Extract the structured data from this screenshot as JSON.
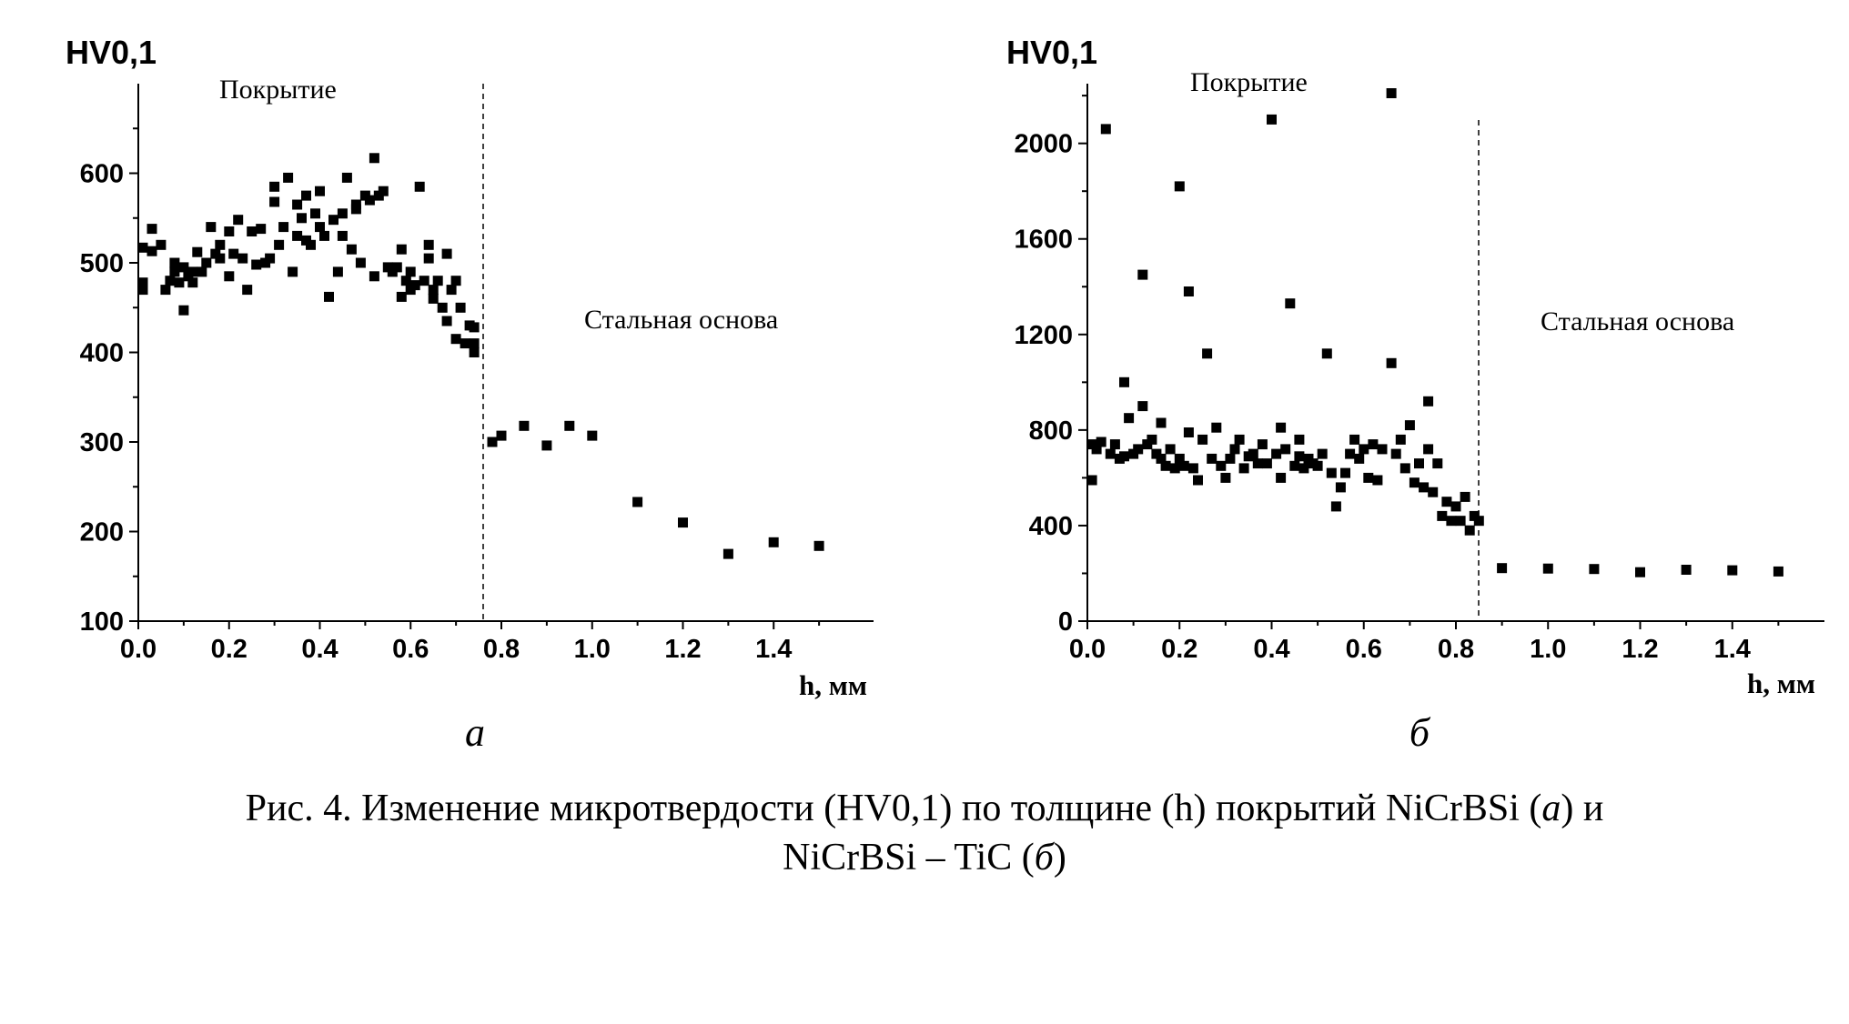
{
  "caption": {
    "line1_pre": "Рис. 4. Изменение микротвердости (HV0,1) по толщине (h) покрытий NiCrBSi (",
    "line1_a": "а",
    "line1_post": ") и",
    "line2_pre": "NiCrBSi – TiC (",
    "line2_b": "б",
    "line2_post": ")"
  },
  "chart_data": [
    {
      "type": "scatter",
      "panel_label": "а",
      "ylabel": "HV0,1",
      "xlabel": "h, мм",
      "xlim": [
        0.0,
        1.6
      ],
      "ylim": [
        100,
        700
      ],
      "xticks": [
        0.0,
        0.2,
        0.4,
        0.6,
        0.8,
        1.0,
        1.2,
        1.4
      ],
      "xtick_labels": [
        "0.0",
        "0.2",
        "0.4",
        "0.6",
        "0.8",
        "1.0",
        "1.2",
        "1.4"
      ],
      "yticks": [
        100,
        200,
        300,
        400,
        500,
        600
      ],
      "ytick_labels": [
        "100",
        "200",
        "300",
        "400",
        "500",
        "600"
      ],
      "boundary_x": 0.75,
      "region_left": "Покрытие",
      "region_right": "Стальная основа",
      "grid": false,
      "points": [
        [
          0.01,
          478
        ],
        [
          0.01,
          470
        ],
        [
          0.01,
          517
        ],
        [
          0.03,
          538
        ],
        [
          0.03,
          513
        ],
        [
          0.05,
          520
        ],
        [
          0.06,
          470
        ],
        [
          0.07,
          480
        ],
        [
          0.08,
          500
        ],
        [
          0.08,
          490
        ],
        [
          0.09,
          478
        ],
        [
          0.1,
          495
        ],
        [
          0.1,
          447
        ],
        [
          0.11,
          485
        ],
        [
          0.12,
          490
        ],
        [
          0.12,
          478
        ],
        [
          0.13,
          512
        ],
        [
          0.14,
          490
        ],
        [
          0.15,
          500
        ],
        [
          0.16,
          540
        ],
        [
          0.17,
          510
        ],
        [
          0.18,
          505
        ],
        [
          0.18,
          520
        ],
        [
          0.2,
          485
        ],
        [
          0.2,
          535
        ],
        [
          0.21,
          510
        ],
        [
          0.22,
          548
        ],
        [
          0.23,
          505
        ],
        [
          0.24,
          470
        ],
        [
          0.25,
          535
        ],
        [
          0.26,
          498
        ],
        [
          0.27,
          538
        ],
        [
          0.28,
          500
        ],
        [
          0.29,
          505
        ],
        [
          0.3,
          585
        ],
        [
          0.3,
          568
        ],
        [
          0.31,
          520
        ],
        [
          0.32,
          540
        ],
        [
          0.33,
          595
        ],
        [
          0.34,
          490
        ],
        [
          0.35,
          530
        ],
        [
          0.35,
          565
        ],
        [
          0.36,
          550
        ],
        [
          0.37,
          575
        ],
        [
          0.37,
          525
        ],
        [
          0.38,
          520
        ],
        [
          0.39,
          555
        ],
        [
          0.4,
          580
        ],
        [
          0.4,
          540
        ],
        [
          0.41,
          530
        ],
        [
          0.42,
          462
        ],
        [
          0.43,
          548
        ],
        [
          0.44,
          490
        ],
        [
          0.45,
          530
        ],
        [
          0.45,
          555
        ],
        [
          0.46,
          595
        ],
        [
          0.47,
          515
        ],
        [
          0.48,
          565
        ],
        [
          0.48,
          560
        ],
        [
          0.49,
          500
        ],
        [
          0.5,
          575
        ],
        [
          0.51,
          570
        ],
        [
          0.52,
          617
        ],
        [
          0.52,
          485
        ],
        [
          0.53,
          575
        ],
        [
          0.54,
          580
        ],
        [
          0.55,
          495
        ],
        [
          0.56,
          490
        ],
        [
          0.57,
          495
        ],
        [
          0.58,
          515
        ],
        [
          0.58,
          462
        ],
        [
          0.59,
          480
        ],
        [
          0.6,
          470
        ],
        [
          0.6,
          490
        ],
        [
          0.61,
          475
        ],
        [
          0.62,
          585
        ],
        [
          0.63,
          480
        ],
        [
          0.64,
          520
        ],
        [
          0.64,
          505
        ],
        [
          0.65,
          470
        ],
        [
          0.65,
          460
        ],
        [
          0.66,
          480
        ],
        [
          0.67,
          450
        ],
        [
          0.68,
          510
        ],
        [
          0.68,
          435
        ],
        [
          0.69,
          470
        ],
        [
          0.7,
          415
        ],
        [
          0.7,
          480
        ],
        [
          0.71,
          450
        ],
        [
          0.72,
          410
        ],
        [
          0.73,
          430
        ],
        [
          0.74,
          428
        ],
        [
          0.74,
          410
        ],
        [
          0.74,
          400
        ],
        [
          0.78,
          300
        ],
        [
          0.8,
          307
        ],
        [
          0.85,
          318
        ],
        [
          0.9,
          296
        ],
        [
          0.95,
          318
        ],
        [
          1.0,
          307
        ],
        [
          1.1,
          233
        ],
        [
          1.2,
          210
        ],
        [
          1.3,
          175
        ],
        [
          1.4,
          188
        ],
        [
          1.5,
          184
        ]
      ]
    },
    {
      "type": "scatter",
      "panel_label": "б",
      "ylabel": "HV0,1",
      "xlabel": "h, мм",
      "xlim": [
        0.0,
        1.6
      ],
      "ylim": [
        0,
        2250
      ],
      "xticks": [
        0.0,
        0.2,
        0.4,
        0.6,
        0.8,
        1.0,
        1.2,
        1.4
      ],
      "xtick_labels": [
        "0.0",
        "0.2",
        "0.4",
        "0.6",
        "0.8",
        "1.0",
        "1.2",
        "1.4"
      ],
      "yticks": [
        0,
        400,
        800,
        1200,
        1600,
        2000
      ],
      "ytick_labels": [
        "0",
        "400",
        "800",
        "1200",
        "1600",
        "2000"
      ],
      "boundary_x": 0.85,
      "region_left": "Покрытие",
      "region_right": "Стальная основа",
      "grid": false,
      "points": [
        [
          0.01,
          590
        ],
        [
          0.01,
          740
        ],
        [
          0.02,
          720
        ],
        [
          0.03,
          750
        ],
        [
          0.04,
          2060
        ],
        [
          0.05,
          700
        ],
        [
          0.06,
          740
        ],
        [
          0.07,
          680
        ],
        [
          0.08,
          690
        ],
        [
          0.08,
          1000
        ],
        [
          0.09,
          850
        ],
        [
          0.1,
          700
        ],
        [
          0.11,
          720
        ],
        [
          0.12,
          1450
        ],
        [
          0.12,
          900
        ],
        [
          0.13,
          740
        ],
        [
          0.14,
          760
        ],
        [
          0.15,
          700
        ],
        [
          0.16,
          680
        ],
        [
          0.16,
          830
        ],
        [
          0.17,
          650
        ],
        [
          0.18,
          720
        ],
        [
          0.19,
          640
        ],
        [
          0.2,
          1820
        ],
        [
          0.2,
          680
        ],
        [
          0.21,
          650
        ],
        [
          0.22,
          1380
        ],
        [
          0.22,
          790
        ],
        [
          0.23,
          640
        ],
        [
          0.24,
          590
        ],
        [
          0.25,
          760
        ],
        [
          0.26,
          1120
        ],
        [
          0.27,
          680
        ],
        [
          0.28,
          810
        ],
        [
          0.29,
          650
        ],
        [
          0.3,
          600
        ],
        [
          0.31,
          680
        ],
        [
          0.32,
          720
        ],
        [
          0.33,
          760
        ],
        [
          0.34,
          640
        ],
        [
          0.35,
          690
        ],
        [
          0.36,
          700
        ],
        [
          0.37,
          660
        ],
        [
          0.38,
          740
        ],
        [
          0.39,
          660
        ],
        [
          0.4,
          2100
        ],
        [
          0.41,
          700
        ],
        [
          0.42,
          810
        ],
        [
          0.42,
          600
        ],
        [
          0.43,
          720
        ],
        [
          0.44,
          1330
        ],
        [
          0.45,
          650
        ],
        [
          0.46,
          690
        ],
        [
          0.46,
          760
        ],
        [
          0.47,
          640
        ],
        [
          0.48,
          680
        ],
        [
          0.49,
          660
        ],
        [
          0.5,
          650
        ],
        [
          0.51,
          700
        ],
        [
          0.52,
          1120
        ],
        [
          0.53,
          620
        ],
        [
          0.54,
          480
        ],
        [
          0.55,
          560
        ],
        [
          0.56,
          620
        ],
        [
          0.57,
          700
        ],
        [
          0.58,
          760
        ],
        [
          0.59,
          680
        ],
        [
          0.6,
          720
        ],
        [
          0.61,
          600
        ],
        [
          0.62,
          740
        ],
        [
          0.63,
          590
        ],
        [
          0.64,
          720
        ],
        [
          0.66,
          2210
        ],
        [
          0.66,
          1080
        ],
        [
          0.67,
          700
        ],
        [
          0.68,
          760
        ],
        [
          0.69,
          640
        ],
        [
          0.7,
          820
        ],
        [
          0.71,
          580
        ],
        [
          0.72,
          660
        ],
        [
          0.73,
          560
        ],
        [
          0.74,
          920
        ],
        [
          0.74,
          720
        ],
        [
          0.75,
          540
        ],
        [
          0.76,
          660
        ],
        [
          0.77,
          440
        ],
        [
          0.78,
          500
        ],
        [
          0.79,
          420
        ],
        [
          0.8,
          480
        ],
        [
          0.81,
          420
        ],
        [
          0.82,
          520
        ],
        [
          0.83,
          380
        ],
        [
          0.84,
          440
        ],
        [
          0.85,
          420
        ],
        [
          0.9,
          222
        ],
        [
          1.0,
          220
        ],
        [
          1.1,
          218
        ],
        [
          1.2,
          205
        ],
        [
          1.3,
          215
        ],
        [
          1.4,
          213
        ],
        [
          1.5,
          208
        ]
      ]
    }
  ]
}
